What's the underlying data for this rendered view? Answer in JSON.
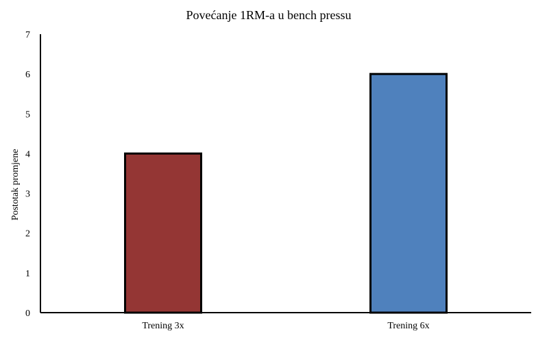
{
  "chart_data": {
    "type": "bar",
    "title": "Povećanje 1RM-a u bench pressu",
    "xlabel": "",
    "ylabel": "Postotak promjene",
    "categories": [
      "Trening 3x",
      "Trening 6x"
    ],
    "values": [
      4,
      6
    ],
    "colors": [
      "#943634",
      "#4f81bd"
    ],
    "ylim": [
      0,
      7
    ],
    "yticks": [
      "0",
      "1",
      "2",
      "3",
      "4",
      "5",
      "6",
      "7"
    ],
    "grid": false,
    "legend": "none"
  }
}
